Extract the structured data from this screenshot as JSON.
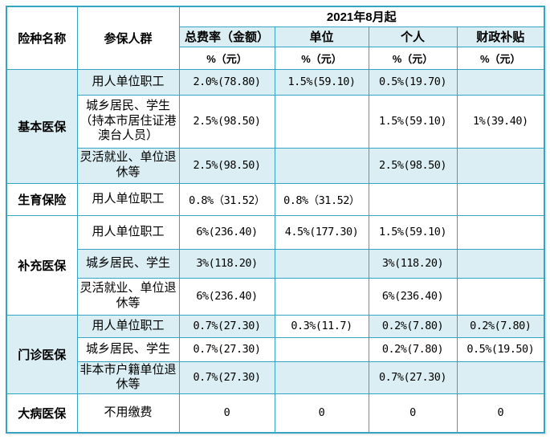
{
  "colors": {
    "border": "#35a3c2",
    "shaded_row_bg": "#daeef3",
    "white_row_bg": "#ffffff",
    "text": "#000000"
  },
  "table": {
    "header": {
      "col1": "险种名称",
      "col2": "参保人群",
      "period": "2021年8月起",
      "metrics": [
        "总费率（金额）",
        "单位",
        "个人",
        "财政补贴"
      ],
      "unit": "%（元）"
    },
    "sections": [
      {
        "name": "基本医保",
        "shaded_label": true,
        "rows": [
          {
            "group": "用人单位职工",
            "values": [
              "2.0%(78.80)",
              "1.5%(59.10)",
              "0.5%(19.70)",
              ""
            ],
            "shaded": true
          },
          {
            "group": "城乡居民、学生（持本市居住证港澳台人员）",
            "values": [
              "2.5%(98.50)",
              "",
              "1.5%(59.10)",
              "1%(39.40)"
            ],
            "shaded": false
          },
          {
            "group": "灵活就业、单位退休等",
            "values": [
              "2.5%(98.50)",
              "",
              "2.5%(98.50)",
              ""
            ],
            "shaded": true
          }
        ]
      },
      {
        "name": "生育保险",
        "shaded_label": false,
        "rows": [
          {
            "group": "用人单位职工",
            "values": [
              "0.8%（31.52）",
              "0.8%（31.52）",
              "",
              ""
            ],
            "shaded": false
          }
        ]
      },
      {
        "name": "补充医保",
        "shaded_label": false,
        "rows": [
          {
            "group": "用人单位职工",
            "values": [
              "6%(236.40)",
              "4.5%(177.30)",
              "1.5%(59.10)",
              ""
            ],
            "shaded": false
          },
          {
            "group": "城乡居民、学生",
            "values": [
              "3%(118.20)",
              "",
              "3%(118.20)",
              ""
            ],
            "shaded": true
          },
          {
            "group": "灵活就业、单位退休等",
            "values": [
              "6%(236.40)",
              "",
              "6%(236.40)",
              ""
            ],
            "shaded": false
          }
        ]
      },
      {
        "name": "门诊医保",
        "shaded_label": true,
        "rows": [
          {
            "group": "用人单位职工",
            "values": [
              "0.7%(27.30)",
              "0.3%(11.7)",
              "0.2%(7.80)",
              "0.2%(7.80)"
            ],
            "shaded": true,
            "white_cells": [
              1
            ]
          },
          {
            "group": "城乡居民、学生",
            "values": [
              "0.7%(27.30)",
              "",
              "0.2%(7.80)",
              "0.5%(19.50)"
            ],
            "shaded": false
          },
          {
            "group": "非本市户籍单位退休等",
            "values": [
              "0.7%(27.30)",
              "",
              "0.7%(27.30)",
              ""
            ],
            "shaded": true
          }
        ]
      },
      {
        "name": "大病医保",
        "shaded_label": false,
        "rows": [
          {
            "group": "不用缴费",
            "values": [
              "0",
              "0",
              "0",
              "0"
            ],
            "shaded": false
          }
        ]
      }
    ]
  }
}
